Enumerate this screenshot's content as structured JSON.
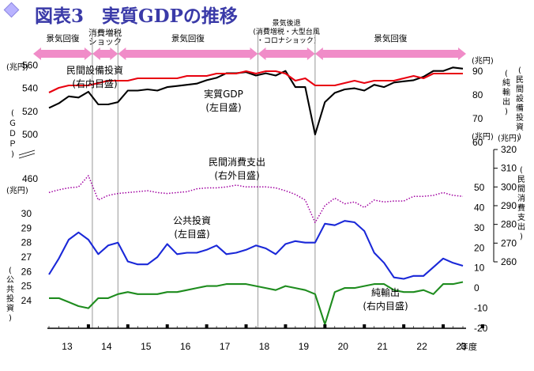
{
  "title": "図表3　実質GDPの推移",
  "title_icon": "diamond-icon",
  "x_axis_label": "年度",
  "chart_data": {
    "type": "line",
    "x_ticks": [
      "13",
      "14",
      "15",
      "16",
      "17",
      "18",
      "19",
      "20",
      "21",
      "22",
      "23"
    ],
    "x": [
      2013.0,
      2013.25,
      2013.5,
      2013.75,
      2014.0,
      2014.25,
      2014.5,
      2014.75,
      2015.0,
      2015.25,
      2015.5,
      2015.75,
      2016.0,
      2016.25,
      2016.5,
      2016.75,
      2017.0,
      2017.25,
      2017.5,
      2017.75,
      2018.0,
      2018.25,
      2018.5,
      2018.75,
      2019.0,
      2019.25,
      2019.5,
      2019.75,
      2020.0,
      2020.25,
      2020.5,
      2020.75,
      2021.0,
      2021.25,
      2021.5,
      2021.75,
      2022.0,
      2022.25,
      2022.5,
      2022.75,
      2023.0,
      2023.25,
      2023.5
    ],
    "phases": [
      {
        "label": "景気回復",
        "from": 2012.6,
        "to": 2014.1,
        "color": "#f08cc8"
      },
      {
        "label": "消費増税\nショック",
        "from": 2014.1,
        "to": 2014.75,
        "color": "#f08cc8"
      },
      {
        "label": "景気回復",
        "from": 2014.75,
        "to": 2018.3,
        "color": "#f08cc8"
      },
      {
        "label": "景気後退\n(消費増税・大型台風\n・コロナショック)",
        "from": 2018.3,
        "to": 2019.75,
        "color": "#f08cc8"
      },
      {
        "label": "景気回復",
        "from": 2019.75,
        "to": 2023.6,
        "color": "#f08cc8"
      }
    ],
    "series": [
      {
        "name": "実質GDP",
        "axis_note": "(左目盛)",
        "color": "#000000",
        "style": "solid",
        "axis": "gdp",
        "values": [
          523,
          527,
          533,
          532,
          537,
          526,
          526,
          528,
          538,
          538,
          539,
          538,
          541,
          542,
          543,
          544,
          547,
          549,
          553,
          553,
          554,
          551,
          553,
          551,
          555,
          541,
          541,
          500,
          528,
          536,
          539,
          540,
          538,
          543,
          541,
          545,
          546,
          547,
          550,
          555,
          555,
          558,
          557
        ]
      },
      {
        "name": "民間設備投資",
        "axis_note": "(右内目盛)",
        "color": "#e8000f",
        "style": "solid",
        "axis": "pinv",
        "values": [
          81,
          83,
          84,
          84,
          84,
          85,
          86,
          86,
          86,
          87,
          87,
          87,
          87,
          87,
          88,
          88,
          88,
          89,
          89,
          89,
          90,
          89,
          90,
          90,
          89,
          86,
          87,
          84,
          84,
          84,
          85,
          86,
          85,
          86,
          86,
          86,
          87,
          88,
          87,
          89,
          89,
          89,
          89
        ]
      },
      {
        "name": "民間消費支出",
        "axis_note": "(右外目盛)",
        "color": "#a000a0",
        "style": "dotted",
        "axis": "cons",
        "values": [
          297,
          298.5,
          299.5,
          300,
          306,
          293,
          295.5,
          296.5,
          297,
          297.5,
          298,
          297,
          296.5,
          297,
          297.5,
          299,
          299.5,
          299.5,
          300,
          301,
          300,
          300,
          300,
          299.5,
          298,
          296,
          293,
          281,
          290,
          294,
          291,
          292,
          289,
          293,
          292,
          292.5,
          292.5,
          295,
          295,
          295.5,
          297,
          295.5,
          295
        ]
      },
      {
        "name": "公共投資",
        "axis_note": "(左目盛)",
        "color": "#1a28d8",
        "style": "solid",
        "axis": "pub",
        "values": [
          25.8,
          26.9,
          28.2,
          28.7,
          28.2,
          27.2,
          27.8,
          28.0,
          26.7,
          26.5,
          26.5,
          27.0,
          27.9,
          27.2,
          27.3,
          27.3,
          27.5,
          27.8,
          27.2,
          27.3,
          27.5,
          27.8,
          27.6,
          27.2,
          27.9,
          28.1,
          28.0,
          28.0,
          29.3,
          29.2,
          29.5,
          29.4,
          28.8,
          27.3,
          26.6,
          25.6,
          25.5,
          25.7,
          25.7,
          26.3,
          26.9,
          26.6,
          26.4
        ]
      },
      {
        "name": "純輸出",
        "axis_note": "(右内目盛)",
        "color": "#1e8c1e",
        "style": "solid",
        "axis": "netx",
        "values": [
          -5,
          -5,
          -7,
          -9,
          -10,
          -5,
          -5,
          -3,
          -2,
          -3,
          -3,
          -3,
          -2,
          -2,
          -1,
          0,
          1,
          1,
          2,
          2,
          2,
          1,
          0,
          -1,
          1,
          0,
          -1,
          -3,
          -18,
          -2,
          0,
          0,
          1,
          2,
          2,
          -1,
          -2,
          -2,
          -1,
          -3,
          2,
          2,
          3
        ]
      }
    ],
    "axes": {
      "gdp": {
        "label": "(ＧＤＰ)",
        "unit": "(兆円)",
        "ticks": [
          460,
          500,
          520,
          540,
          560
        ],
        "ylim": [
          500,
          563
        ]
      },
      "pub": {
        "label": "(公共投資)",
        "unit": "(兆円)",
        "ticks": [
          24,
          25,
          26,
          27,
          28,
          29,
          30
        ],
        "ylim": [
          24,
          30
        ]
      },
      "pinv": {
        "label": "(民間設備投資)",
        "unit": "(兆円)",
        "ticks": [
          60,
          70,
          80,
          90
        ],
        "ylim": [
          60,
          90
        ]
      },
      "netx": {
        "label": "(純輸出)",
        "unit": "(兆円)",
        "ticks": [
          -20,
          -10,
          0,
          10,
          20,
          30,
          40,
          50
        ],
        "ylim": [
          -20,
          50
        ]
      },
      "cons": {
        "label": "(民間消費支出)",
        "unit": "(兆円)",
        "ticks": [
          260,
          270,
          280,
          290,
          300,
          310,
          320
        ],
        "ylim": [
          260,
          320
        ]
      }
    },
    "grid": false
  }
}
